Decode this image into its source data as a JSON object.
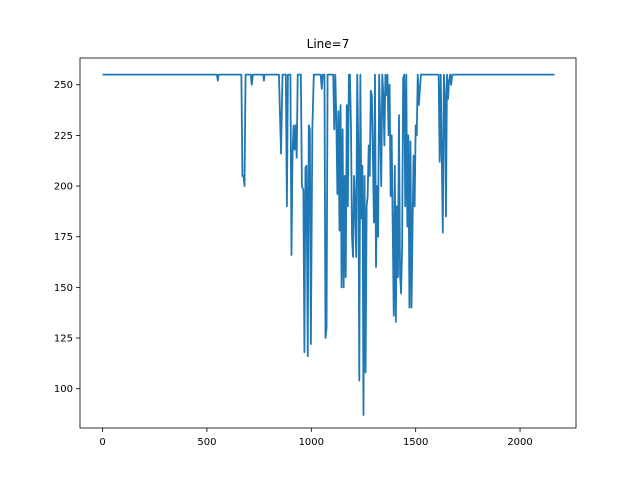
{
  "chart_data": {
    "type": "line",
    "title": "Line=7",
    "xlabel": "",
    "ylabel": "",
    "xlim": [
      -108,
      2268
    ],
    "ylim": [
      80.6,
      263.2
    ],
    "x_ticks": [
      0,
      500,
      1000,
      1500,
      2000
    ],
    "y_ticks": [
      100,
      125,
      150,
      175,
      200,
      225,
      250
    ],
    "x_tick_labels": [
      "0",
      "500",
      "1000",
      "1500",
      "2000"
    ],
    "y_tick_labels": [
      "100",
      "125",
      "150",
      "175",
      "200",
      "225",
      "250"
    ],
    "grid": false,
    "series": [
      {
        "color": "#1f77b4",
        "points": [
          [
            0,
            255
          ],
          [
            548,
            255
          ],
          [
            552,
            252
          ],
          [
            556,
            255
          ],
          [
            665,
            255
          ],
          [
            670,
            205
          ],
          [
            675,
            205
          ],
          [
            680,
            200
          ],
          [
            685,
            255
          ],
          [
            710,
            255
          ],
          [
            715,
            250
          ],
          [
            720,
            255
          ],
          [
            770,
            255
          ],
          [
            773,
            252
          ],
          [
            776,
            255
          ],
          [
            845,
            255
          ],
          [
            855,
            216
          ],
          [
            862,
            255
          ],
          [
            878,
            255
          ],
          [
            883,
            190
          ],
          [
            888,
            255
          ],
          [
            900,
            255
          ],
          [
            905,
            166
          ],
          [
            910,
            215
          ],
          [
            915,
            230
          ],
          [
            920,
            218
          ],
          [
            925,
            230
          ],
          [
            930,
            214
          ],
          [
            935,
            255
          ],
          [
            950,
            255
          ],
          [
            955,
            200
          ],
          [
            962,
            198
          ],
          [
            967,
            118
          ],
          [
            972,
            209
          ],
          [
            977,
            210
          ],
          [
            983,
            116
          ],
          [
            988,
            230
          ],
          [
            993,
            228
          ],
          [
            998,
            122
          ],
          [
            1005,
            228
          ],
          [
            1012,
            255
          ],
          [
            1045,
            255
          ],
          [
            1050,
            248
          ],
          [
            1055,
            255
          ],
          [
            1063,
            255
          ],
          [
            1068,
            125
          ],
          [
            1073,
            130
          ],
          [
            1078,
            255
          ],
          [
            1105,
            255
          ],
          [
            1110,
            228
          ],
          [
            1115,
            255
          ],
          [
            1120,
            232
          ],
          [
            1125,
            196
          ],
          [
            1130,
            237
          ],
          [
            1135,
            178
          ],
          [
            1140,
            240
          ],
          [
            1145,
            150
          ],
          [
            1150,
            228
          ],
          [
            1155,
            150
          ],
          [
            1160,
            205
          ],
          [
            1165,
            155
          ],
          [
            1170,
            240
          ],
          [
            1175,
            190
          ],
          [
            1180,
            255
          ],
          [
            1185,
            255
          ],
          [
            1190,
            230
          ],
          [
            1195,
            175
          ],
          [
            1200,
            165
          ],
          [
            1205,
            205
          ],
          [
            1210,
            190
          ],
          [
            1215,
            165
          ],
          [
            1220,
            255
          ],
          [
            1225,
            220
          ],
          [
            1230,
            104
          ],
          [
            1235,
            255
          ],
          [
            1240,
            184
          ],
          [
            1245,
            210
          ],
          [
            1250,
            87
          ],
          [
            1255,
            205
          ],
          [
            1260,
            108
          ],
          [
            1265,
            190
          ],
          [
            1270,
            195
          ],
          [
            1275,
            220
          ],
          [
            1280,
            205
          ],
          [
            1285,
            247
          ],
          [
            1290,
            245
          ],
          [
            1295,
            215
          ],
          [
            1300,
            182
          ],
          [
            1305,
            255
          ],
          [
            1310,
            160
          ],
          [
            1315,
            200
          ],
          [
            1320,
            175
          ],
          [
            1325,
            255
          ],
          [
            1330,
            232
          ],
          [
            1335,
            200
          ],
          [
            1340,
            255
          ],
          [
            1345,
            245
          ],
          [
            1350,
            220
          ],
          [
            1355,
            255
          ],
          [
            1360,
            245
          ],
          [
            1365,
            255
          ],
          [
            1370,
            225
          ],
          [
            1375,
            250
          ],
          [
            1380,
            195
          ],
          [
            1385,
            225
          ],
          [
            1390,
            180
          ],
          [
            1395,
            136
          ],
          [
            1400,
            210
          ],
          [
            1405,
            133
          ],
          [
            1410,
            190
          ],
          [
            1415,
            155
          ],
          [
            1420,
            235
          ],
          [
            1425,
            157
          ],
          [
            1430,
            147
          ],
          [
            1435,
            170
          ],
          [
            1440,
            253
          ],
          [
            1445,
            255
          ],
          [
            1450,
            190
          ],
          [
            1455,
            255
          ],
          [
            1460,
            180
          ],
          [
            1465,
            225
          ],
          [
            1470,
            140
          ],
          [
            1475,
            222
          ],
          [
            1480,
            140
          ],
          [
            1485,
            180
          ],
          [
            1490,
            215
          ],
          [
            1495,
            190
          ],
          [
            1500,
            230
          ],
          [
            1505,
            225
          ],
          [
            1510,
            255
          ],
          [
            1515,
            240
          ],
          [
            1525,
            255
          ],
          [
            1610,
            255
          ],
          [
            1615,
            212
          ],
          [
            1620,
            255
          ],
          [
            1625,
            215
          ],
          [
            1630,
            177
          ],
          [
            1635,
            255
          ],
          [
            1640,
            246
          ],
          [
            1645,
            185
          ],
          [
            1650,
            255
          ],
          [
            1655,
            243
          ],
          [
            1660,
            252
          ],
          [
            1665,
            255
          ],
          [
            1670,
            250
          ],
          [
            1675,
            255
          ],
          [
            2165,
            255
          ]
        ]
      }
    ]
  }
}
